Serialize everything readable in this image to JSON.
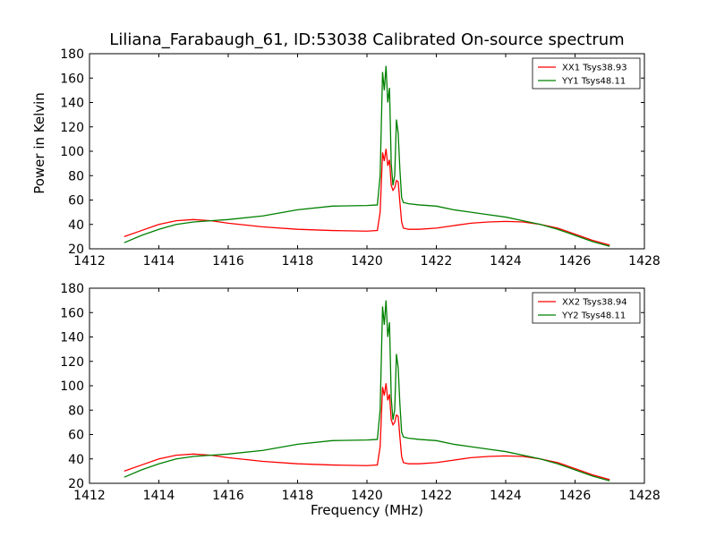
{
  "title": "Liliana_Farabaugh_61, ID:53038 Calibrated On-source spectrum",
  "ylabel": "Power in Kelvin",
  "xlabel": "Frequency (MHz)",
  "chart_data": [
    {
      "type": "line",
      "xlim": [
        1412,
        1428
      ],
      "ylim": [
        20,
        180
      ],
      "xticks": [
        1412,
        1414,
        1416,
        1418,
        1420,
        1422,
        1424,
        1426,
        1428
      ],
      "yticks": [
        20,
        40,
        60,
        80,
        100,
        120,
        140,
        160,
        180
      ],
      "legend_position": "top-right",
      "series": [
        {
          "name": "XX1 Tsys38.93",
          "color": "#ff0000",
          "x": [
            1413.0,
            1413.5,
            1414.0,
            1414.5,
            1415.0,
            1415.5,
            1416.0,
            1417.0,
            1418.0,
            1419.0,
            1420.0,
            1420.3,
            1420.38,
            1420.45,
            1420.5,
            1420.55,
            1420.6,
            1420.65,
            1420.7,
            1420.75,
            1420.8,
            1420.85,
            1420.9,
            1420.95,
            1421.0,
            1421.05,
            1421.2,
            1421.5,
            1422.0,
            1422.5,
            1423.0,
            1423.5,
            1424.0,
            1424.5,
            1425.0,
            1425.5,
            1426.0,
            1426.5,
            1427.0
          ],
          "y": [
            30,
            35,
            40,
            43,
            44,
            43,
            41,
            38,
            36,
            35,
            34.5,
            35,
            50,
            99,
            92,
            102,
            88,
            93,
            72,
            68,
            70,
            76,
            75,
            58,
            42,
            37,
            36,
            36,
            37,
            39,
            41,
            42,
            42.5,
            42,
            40,
            37,
            32,
            27,
            23
          ]
        },
        {
          "name": "YY1 Tsys48.11",
          "color": "#008000",
          "x": [
            1413.0,
            1413.5,
            1414.0,
            1414.5,
            1415.0,
            1415.5,
            1416.0,
            1417.0,
            1418.0,
            1419.0,
            1420.0,
            1420.3,
            1420.38,
            1420.45,
            1420.5,
            1420.55,
            1420.6,
            1420.65,
            1420.7,
            1420.75,
            1420.8,
            1420.85,
            1420.9,
            1420.95,
            1421.0,
            1421.05,
            1421.2,
            1421.5,
            1422.0,
            1422.5,
            1423.0,
            1423.5,
            1424.0,
            1424.5,
            1425.0,
            1425.5,
            1426.0,
            1426.5,
            1427.0
          ],
          "y": [
            25,
            31,
            36,
            40,
            42,
            43,
            44,
            47,
            52,
            55,
            55.5,
            56,
            80,
            165,
            150,
            170,
            140,
            152,
            90,
            72,
            80,
            126,
            115,
            85,
            62,
            58,
            57,
            56,
            55,
            52,
            50,
            48,
            46,
            43,
            40,
            36,
            31,
            26,
            22
          ]
        }
      ]
    },
    {
      "type": "line",
      "xlim": [
        1412,
        1428
      ],
      "ylim": [
        20,
        180
      ],
      "xticks": [
        1412,
        1414,
        1416,
        1418,
        1420,
        1422,
        1424,
        1426,
        1428
      ],
      "yticks": [
        20,
        40,
        60,
        80,
        100,
        120,
        140,
        160,
        180
      ],
      "xlabel": "Frequency (MHz)",
      "legend_position": "top-right",
      "series": [
        {
          "name": "XX2 Tsys38.94",
          "color": "#ff0000",
          "x": [
            1413.0,
            1413.5,
            1414.0,
            1414.5,
            1415.0,
            1415.5,
            1416.0,
            1417.0,
            1418.0,
            1419.0,
            1420.0,
            1420.3,
            1420.38,
            1420.45,
            1420.5,
            1420.55,
            1420.6,
            1420.65,
            1420.7,
            1420.75,
            1420.8,
            1420.85,
            1420.9,
            1420.95,
            1421.0,
            1421.05,
            1421.2,
            1421.5,
            1422.0,
            1422.5,
            1423.0,
            1423.5,
            1424.0,
            1424.5,
            1425.0,
            1425.5,
            1426.0,
            1426.5,
            1427.0
          ],
          "y": [
            30,
            35,
            40,
            43,
            44,
            43,
            41,
            38,
            36,
            35,
            34.5,
            35,
            50,
            99,
            92,
            102,
            88,
            93,
            72,
            68,
            70,
            76,
            75,
            58,
            42,
            37,
            36,
            36,
            37,
            39,
            41,
            42,
            42.5,
            42,
            40,
            37,
            32,
            27,
            23
          ]
        },
        {
          "name": "YY2 Tsys48.11",
          "color": "#008000",
          "x": [
            1413.0,
            1413.5,
            1414.0,
            1414.5,
            1415.0,
            1415.5,
            1416.0,
            1417.0,
            1418.0,
            1419.0,
            1420.0,
            1420.3,
            1420.38,
            1420.45,
            1420.5,
            1420.55,
            1420.6,
            1420.65,
            1420.7,
            1420.75,
            1420.8,
            1420.85,
            1420.9,
            1420.95,
            1421.0,
            1421.05,
            1421.2,
            1421.5,
            1422.0,
            1422.5,
            1423.0,
            1423.5,
            1424.0,
            1424.5,
            1425.0,
            1425.5,
            1426.0,
            1426.5,
            1427.0
          ],
          "y": [
            25,
            31,
            36,
            40,
            42,
            43,
            44,
            47,
            52,
            55,
            55.5,
            56,
            80,
            165,
            150,
            170,
            140,
            152,
            90,
            72,
            80,
            126,
            115,
            85,
            62,
            58,
            57,
            56,
            55,
            52,
            50,
            48,
            46,
            43,
            40,
            36,
            31,
            26,
            22
          ]
        }
      ]
    }
  ]
}
